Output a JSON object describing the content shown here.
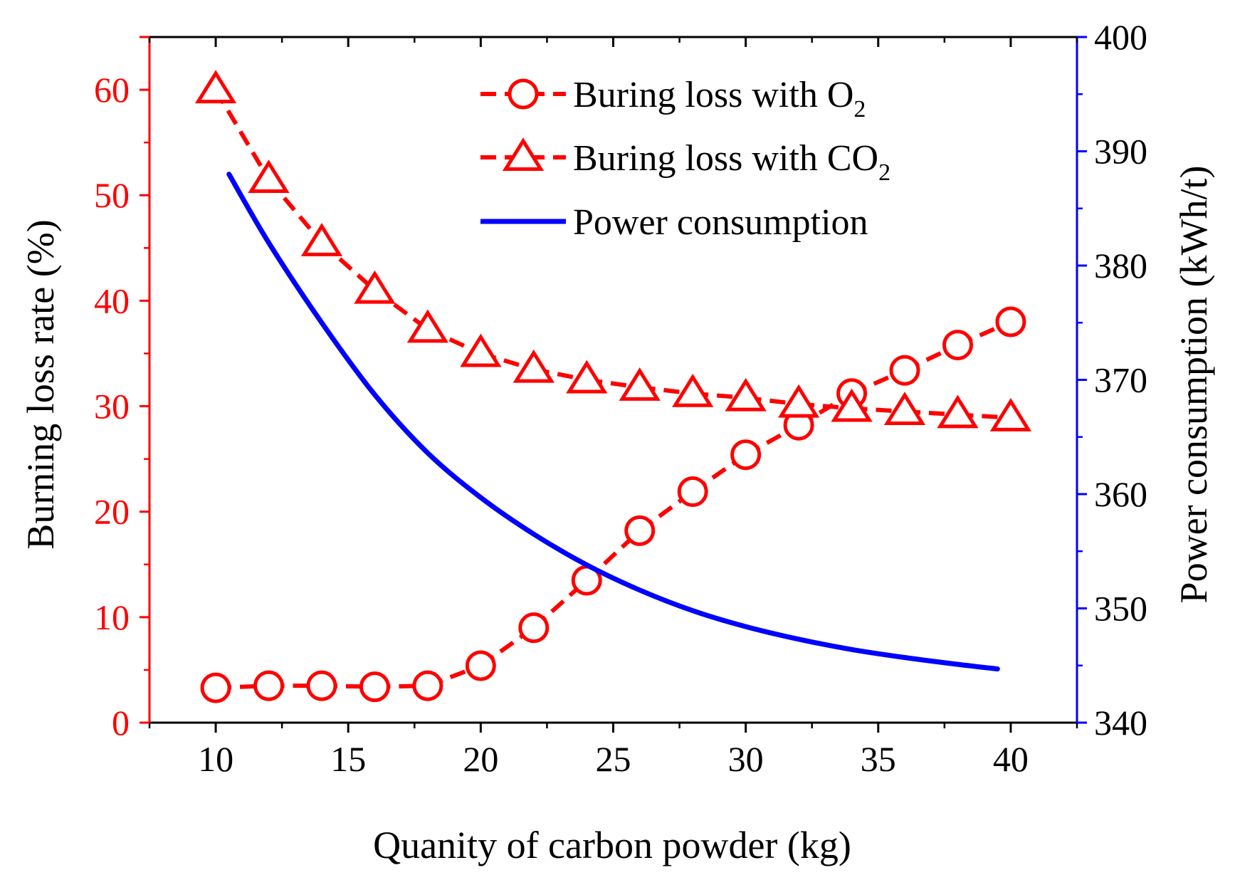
{
  "chart_data": {
    "type": "line",
    "title": "",
    "xlabel": "Quanity of carbon powder (kg)",
    "ylabel_left": "Burning loss rate (%)",
    "ylabel_right": "Power consumption (kWh/t)",
    "xlim": [
      7.5,
      42.5
    ],
    "ylim_left": [
      0,
      65
    ],
    "ylim_right": [
      340,
      400
    ],
    "x_ticks": [
      "10",
      "15",
      "20",
      "25",
      "30",
      "35",
      "40"
    ],
    "y_left_ticks": [
      "0",
      "10",
      "20",
      "30",
      "40",
      "50",
      "60"
    ],
    "y_right_ticks": [
      "340",
      "350",
      "360",
      "370",
      "380",
      "390",
      "400"
    ],
    "grid": false,
    "legend_position": "top-right",
    "colors": {
      "left_axis": "#ff0000",
      "right_axis": "#0000ff",
      "o2": "#ff0000",
      "co2": "#ff0000",
      "power": "#0000ff"
    },
    "series": [
      {
        "name": "Buring loss with O",
        "subscript": "2",
        "axis": "left",
        "marker": "circle",
        "line": "dashed",
        "x": [
          10,
          12,
          14,
          16,
          18,
          20,
          22,
          24,
          26,
          28,
          30,
          32,
          34,
          36,
          38,
          40
        ],
        "values": [
          3.3,
          3.5,
          3.5,
          3.4,
          3.5,
          5.4,
          9.0,
          13.5,
          18.2,
          21.9,
          25.4,
          28.2,
          31.2,
          33.4,
          35.8,
          38.0
        ]
      },
      {
        "name": "Buring loss with CO",
        "subscript": "2",
        "axis": "left",
        "marker": "triangle",
        "line": "dashed",
        "x": [
          10,
          12,
          14,
          16,
          18,
          20,
          22,
          24,
          26,
          28,
          30,
          32,
          34,
          36,
          38,
          40
        ],
        "values": [
          60.0,
          51.5,
          45.5,
          41.0,
          37.3,
          35.0,
          33.5,
          32.5,
          31.8,
          31.2,
          30.8,
          30.2,
          29.8,
          29.5,
          29.2,
          28.9
        ]
      },
      {
        "name": "Power consumption",
        "subscript": "",
        "axis": "right",
        "marker": "none",
        "line": "solid",
        "x": [
          10.5,
          12,
          14,
          16,
          18,
          20,
          22,
          24,
          26,
          28,
          30,
          32,
          34,
          36,
          38,
          39.5
        ],
        "values": [
          388.0,
          382.0,
          375.0,
          368.7,
          363.6,
          359.7,
          356.5,
          353.8,
          351.6,
          349.8,
          348.4,
          347.3,
          346.4,
          345.7,
          345.1,
          344.7
        ]
      }
    ]
  }
}
